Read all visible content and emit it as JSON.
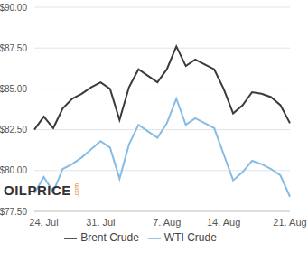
{
  "chart_data": {
    "type": "line",
    "categories": [
      null,
      "24. Jul",
      null,
      null,
      null,
      null,
      null,
      "31. Jul",
      null,
      null,
      null,
      null,
      null,
      null,
      "7. Aug",
      null,
      null,
      null,
      null,
      null,
      "14. Aug",
      null,
      null,
      null,
      null,
      null,
      null,
      "21. Aug"
    ],
    "series": [
      {
        "name": "WTI Crude",
        "color": "#86bce4",
        "values": [
          78.6,
          79.6,
          78.7,
          80.1,
          80.4,
          80.8,
          81.3,
          81.8,
          81.4,
          79.5,
          81.6,
          82.8,
          82.4,
          82.0,
          82.9,
          84.4,
          82.8,
          83.2,
          82.9,
          82.6,
          81.0,
          79.4,
          79.9,
          80.6,
          80.4,
          80.1,
          79.7,
          78.4
        ]
      },
      {
        "name": "Brent Crude",
        "color": "#3a3a3a",
        "values": [
          82.5,
          83.3,
          82.6,
          83.8,
          84.4,
          84.7,
          85.1,
          85.4,
          85.0,
          83.1,
          85.1,
          86.2,
          85.8,
          85.4,
          86.2,
          87.6,
          86.4,
          86.8,
          86.5,
          86.2,
          85.0,
          83.5,
          84.0,
          84.8,
          84.7,
          84.5,
          84.0,
          82.9
        ]
      }
    ],
    "ylim": [
      77.5,
      90
    ],
    "yticks": [
      {
        "value": 77.5,
        "label": "$77.50"
      },
      {
        "value": 80,
        "label": "$80.00"
      },
      {
        "value": 82.5,
        "label": "$82.50"
      },
      {
        "value": 85,
        "label": "$85.00"
      },
      {
        "value": 87.5,
        "label": "$87.50"
      },
      {
        "value": 90,
        "label": "$90.00"
      }
    ],
    "grid": true,
    "legend": "bottom",
    "annotations": [
      "OILPRICE",
      ".com"
    ]
  }
}
